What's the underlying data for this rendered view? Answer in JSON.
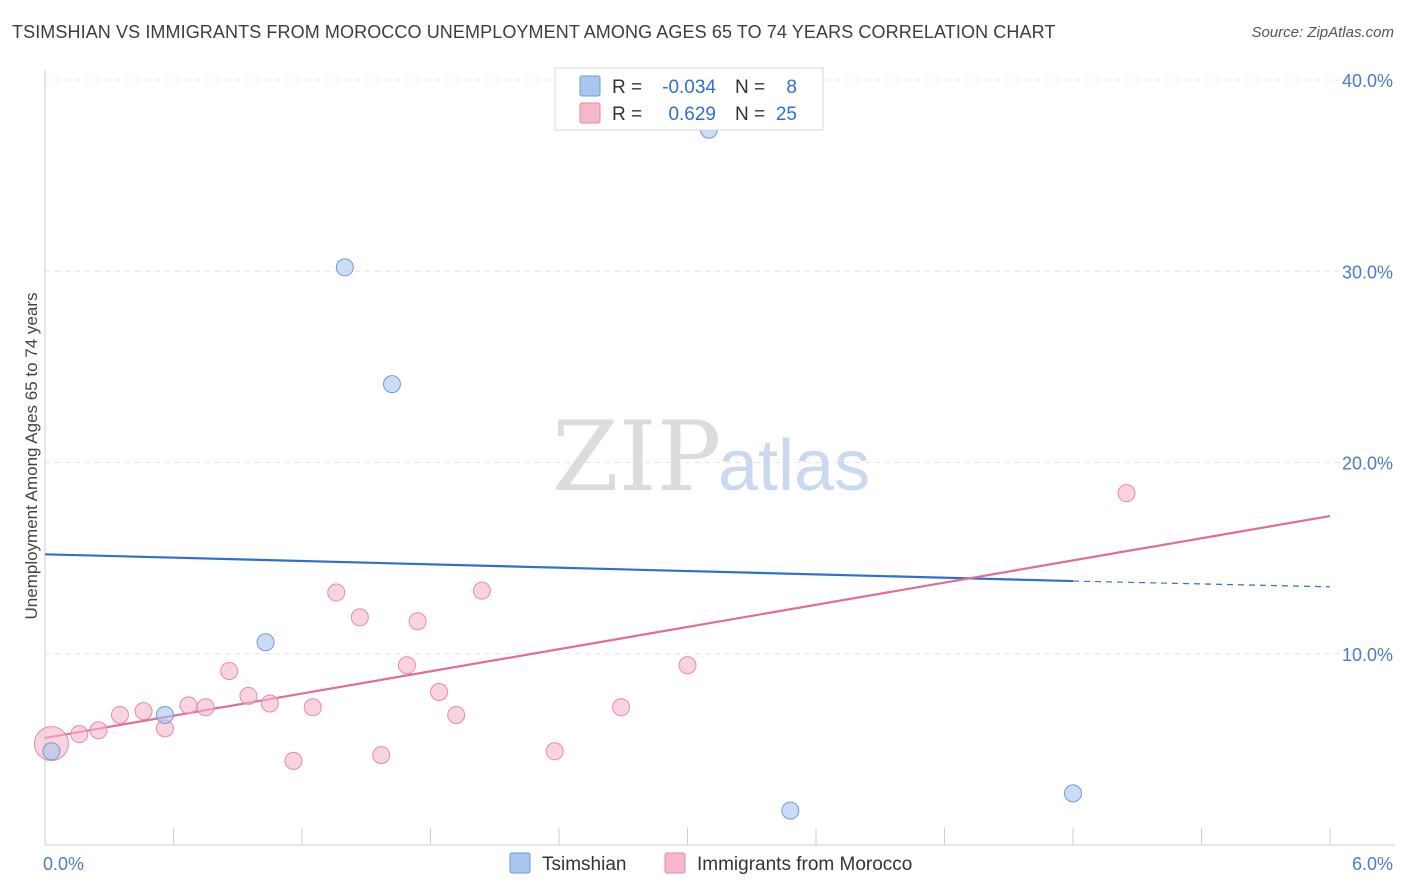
{
  "header": {
    "title": "TSIMSHIAN VS IMMIGRANTS FROM MOROCCO UNEMPLOYMENT AMONG AGES 65 TO 74 YEARS CORRELATION CHART",
    "source": "Source: ZipAtlas.com"
  },
  "watermark": {
    "zip": "ZIP",
    "atlas": "atlas"
  },
  "legend": {
    "rows": [
      {
        "r_label": "R =",
        "r_value": "-0.034",
        "n_label": "N =",
        "n_value": "8",
        "color": "#a9c6ee"
      },
      {
        "r_label": "R =",
        "r_value": "0.629",
        "n_label": "N =",
        "n_value": "25",
        "color": "#f5b7c9"
      }
    ]
  },
  "bottom_legend": [
    {
      "label": "Tsimshian",
      "color": "#a9c6ee"
    },
    {
      "label": "Immigrants from Morocco",
      "color": "#f5b7c9"
    }
  ],
  "chart_data": {
    "type": "scatter",
    "title": "TSIMSHIAN VS IMMIGRANTS FROM MOROCCO UNEMPLOYMENT AMONG AGES 65 TO 74 YEARS CORRELATION CHART",
    "xlabel": "",
    "ylabel": "Unemployment Among Ages 65 to 74 years",
    "xlim": [
      0,
      6
    ],
    "ylim": [
      0,
      40
    ],
    "x_tick_labels": [
      "0.0%",
      "6.0%"
    ],
    "y_ticks": [
      10,
      20,
      30,
      40
    ],
    "y_tick_labels": [
      "10.0%",
      "20.0%",
      "30.0%",
      "40.0%"
    ],
    "grid": true,
    "series": [
      {
        "name": "Tsimshian",
        "color": "#a9c6ee",
        "edge": "#6f9ad6",
        "trend_color": "#2f6fd0",
        "points": [
          [
            0.03,
            4.9
          ],
          [
            0.56,
            6.8
          ],
          [
            1.03,
            10.6
          ],
          [
            1.4,
            30.2
          ],
          [
            1.62,
            24.1
          ],
          [
            3.1,
            37.4
          ],
          [
            3.48,
            1.8
          ],
          [
            4.8,
            2.7
          ]
        ],
        "trend": {
          "x0": 0.0,
          "y0": 15.2,
          "x1": 4.8,
          "y1": 13.8,
          "x_dash_end": 6.0,
          "y_dash_end": 13.5
        }
      },
      {
        "name": "Immigrants from Morocco",
        "color": "#f5b7c9",
        "edge": "#e88aa8",
        "trend_color": "#e06d97",
        "points": [
          [
            0.03,
            5.3
          ],
          [
            0.16,
            5.8
          ],
          [
            0.25,
            6.0
          ],
          [
            0.35,
            6.8
          ],
          [
            0.46,
            7.0
          ],
          [
            0.56,
            6.1
          ],
          [
            0.67,
            7.3
          ],
          [
            0.75,
            7.2
          ],
          [
            0.86,
            9.1
          ],
          [
            0.95,
            7.8
          ],
          [
            1.05,
            7.4
          ],
          [
            1.16,
            4.4
          ],
          [
            1.25,
            7.2
          ],
          [
            1.36,
            13.2
          ],
          [
            1.47,
            11.9
          ],
          [
            1.57,
            4.7
          ],
          [
            1.69,
            9.4
          ],
          [
            1.74,
            11.7
          ],
          [
            1.84,
            8.0
          ],
          [
            1.92,
            6.8
          ],
          [
            2.04,
            13.3
          ],
          [
            2.38,
            4.9
          ],
          [
            2.69,
            7.2
          ],
          [
            3.0,
            9.4
          ],
          [
            5.05,
            18.4
          ]
        ],
        "trend": {
          "x0": 0.0,
          "y0": 5.6,
          "x1": 6.0,
          "y1": 17.2
        }
      }
    ]
  }
}
